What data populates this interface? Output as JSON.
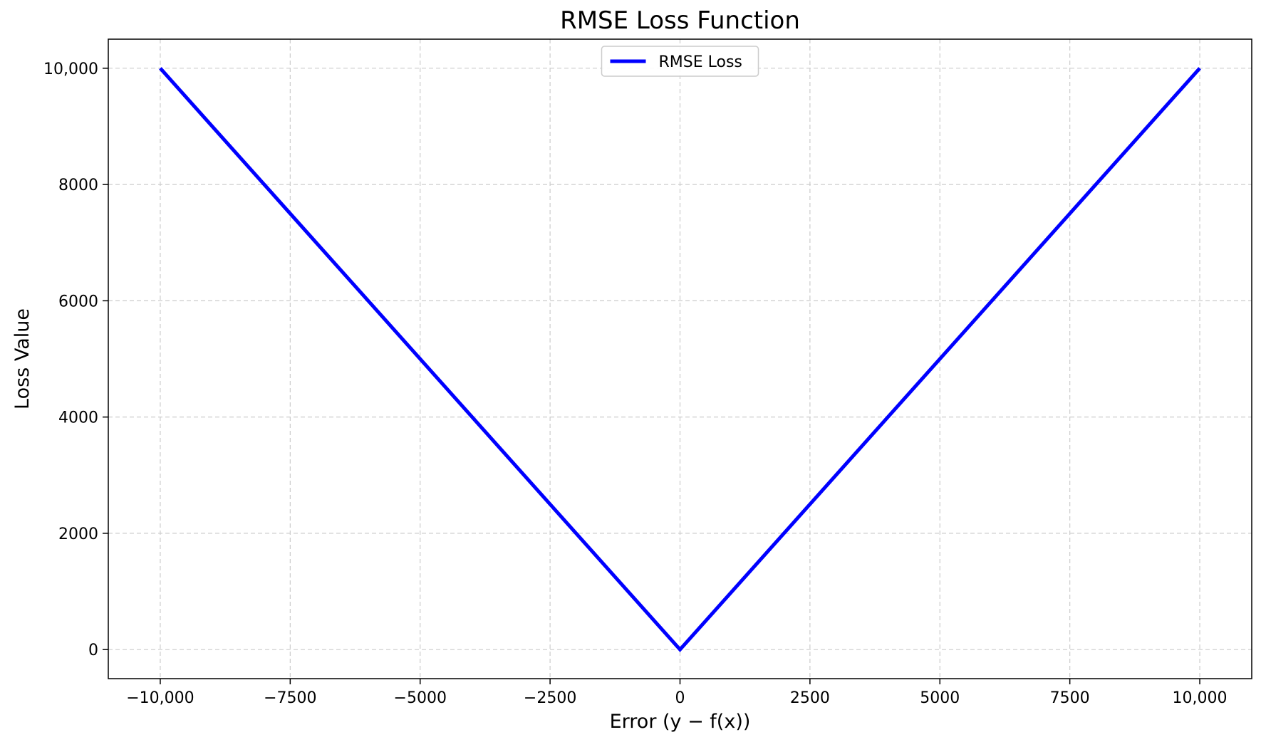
{
  "chart_data": {
    "type": "line",
    "title": "RMSE Loss Function",
    "xlabel": "Error (y − f(x))",
    "ylabel": "Loss Value",
    "xlim": [
      -11000,
      11000
    ],
    "ylim": [
      -500,
      10500
    ],
    "x_ticks": [
      -10000,
      -7500,
      -5000,
      -2500,
      0,
      2500,
      5000,
      7500,
      10000
    ],
    "x_tick_labels": [
      "−10,000",
      "−7500",
      "−5000",
      "−2500",
      "0",
      "2500",
      "5000",
      "7500",
      "10,000"
    ],
    "y_ticks": [
      0,
      2000,
      4000,
      6000,
      8000,
      10000
    ],
    "y_tick_labels": [
      "0",
      "2000",
      "4000",
      "6000",
      "8000",
      "10,000"
    ],
    "grid": true,
    "legend_position": "upper-center",
    "series": [
      {
        "name": "RMSE Loss",
        "color": "#0000ff",
        "x": [
          -10000,
          0,
          10000
        ],
        "y": [
          10000,
          0,
          10000
        ]
      }
    ]
  }
}
